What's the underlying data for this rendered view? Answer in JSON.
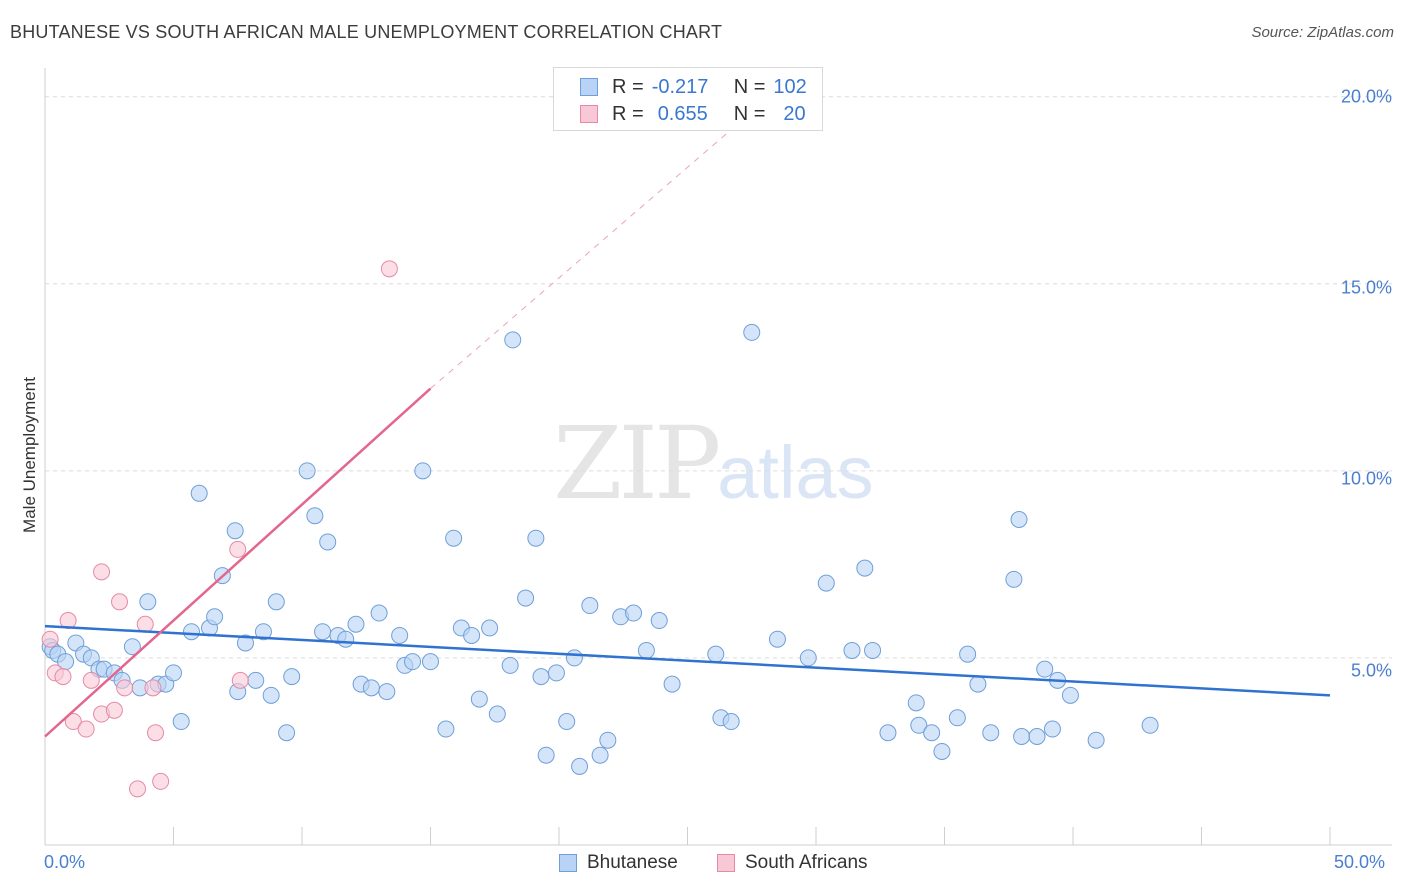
{
  "header": {
    "title": "BHUTANESE VS SOUTH AFRICAN MALE UNEMPLOYMENT CORRELATION CHART",
    "source": "Source: ZipAtlas.com"
  },
  "watermark": {
    "zip": "ZIP",
    "atlas": "atlas"
  },
  "legend_top": {
    "r_label": "R =",
    "n_label": "N =",
    "rows": [
      {
        "r": "-0.217",
        "n": "102",
        "color": "#b8d3f5",
        "border": "#6f9fd8"
      },
      {
        "r": "0.655",
        "n": "20",
        "color": "#f8c8d6",
        "border": "#e58aa6"
      }
    ]
  },
  "legend_bottom": [
    {
      "label": "Bhutanese",
      "color": "#b8d3f5",
      "border": "#6f9fd8"
    },
    {
      "label": "South Africans",
      "color": "#f8c8d6",
      "border": "#e58aa6"
    }
  ],
  "chart_data": {
    "type": "scatter",
    "title": "BHUTANESE VS SOUTH AFRICAN MALE UNEMPLOYMENT CORRELATION CHART",
    "xlabel": "",
    "ylabel": "Male Unemployment",
    "xlim": [
      0,
      50
    ],
    "ylim": [
      0,
      20
    ],
    "x_tick_labels": [
      "0.0%",
      "50.0%"
    ],
    "y_ticks": [
      5,
      10,
      15,
      20
    ],
    "y_tick_labels": [
      "5.0%",
      "10.0%",
      "15.0%",
      "20.0%"
    ],
    "grid": true,
    "series": [
      {
        "name": "Bhutanese",
        "color": "#6f9fd8",
        "fill": "#b8d3f5",
        "trend": {
          "x0": 0,
          "y0": 5.85,
          "x1": 50,
          "y1": 4.0
        },
        "points": [
          [
            0.2,
            5.3
          ],
          [
            0.3,
            5.2
          ],
          [
            0.5,
            5.1
          ],
          [
            0.8,
            4.9
          ],
          [
            1.2,
            5.4
          ],
          [
            1.5,
            5.1
          ],
          [
            1.8,
            5.0
          ],
          [
            2.1,
            4.7
          ],
          [
            2.3,
            4.7
          ],
          [
            2.7,
            4.6
          ],
          [
            3.0,
            4.4
          ],
          [
            3.4,
            5.3
          ],
          [
            3.7,
            4.2
          ],
          [
            4.0,
            6.5
          ],
          [
            4.4,
            4.3
          ],
          [
            4.7,
            4.3
          ],
          [
            5.0,
            4.6
          ],
          [
            5.3,
            3.3
          ],
          [
            5.7,
            5.7
          ],
          [
            6.0,
            9.4
          ],
          [
            6.4,
            5.8
          ],
          [
            6.6,
            6.1
          ],
          [
            6.9,
            7.2
          ],
          [
            7.4,
            8.4
          ],
          [
            7.5,
            4.1
          ],
          [
            7.8,
            5.4
          ],
          [
            8.2,
            4.4
          ],
          [
            8.5,
            5.7
          ],
          [
            8.8,
            4.0
          ],
          [
            9.0,
            6.5
          ],
          [
            9.4,
            3.0
          ],
          [
            9.6,
            4.5
          ],
          [
            10.2,
            10.0
          ],
          [
            10.5,
            8.8
          ],
          [
            10.8,
            5.7
          ],
          [
            11.0,
            8.1
          ],
          [
            11.4,
            5.6
          ],
          [
            11.7,
            5.5
          ],
          [
            12.1,
            5.9
          ],
          [
            12.3,
            4.3
          ],
          [
            12.7,
            4.2
          ],
          [
            13.0,
            6.2
          ],
          [
            13.3,
            4.1
          ],
          [
            13.8,
            5.6
          ],
          [
            14.0,
            4.8
          ],
          [
            14.3,
            4.9
          ],
          [
            14.7,
            10.0
          ],
          [
            15.0,
            4.9
          ],
          [
            15.6,
            3.1
          ],
          [
            15.9,
            8.2
          ],
          [
            16.2,
            5.8
          ],
          [
            16.6,
            5.6
          ],
          [
            16.9,
            3.9
          ],
          [
            17.3,
            5.8
          ],
          [
            17.6,
            3.5
          ],
          [
            18.1,
            4.8
          ],
          [
            18.2,
            13.5
          ],
          [
            18.7,
            6.6
          ],
          [
            19.1,
            8.2
          ],
          [
            19.3,
            4.5
          ],
          [
            19.5,
            2.4
          ],
          [
            19.9,
            4.6
          ],
          [
            20.3,
            3.3
          ],
          [
            20.6,
            5.0
          ],
          [
            20.8,
            2.1
          ],
          [
            21.2,
            6.4
          ],
          [
            21.6,
            2.4
          ],
          [
            21.9,
            2.8
          ],
          [
            22.4,
            6.1
          ],
          [
            22.9,
            6.2
          ],
          [
            23.4,
            5.2
          ],
          [
            23.9,
            6.0
          ],
          [
            24.4,
            4.3
          ],
          [
            26.1,
            5.1
          ],
          [
            26.3,
            3.4
          ],
          [
            26.7,
            3.3
          ],
          [
            27.5,
            13.7
          ],
          [
            28.5,
            5.5
          ],
          [
            29.7,
            5.0
          ],
          [
            30.4,
            7.0
          ],
          [
            31.4,
            5.2
          ],
          [
            31.9,
            7.4
          ],
          [
            32.2,
            5.2
          ],
          [
            32.8,
            3.0
          ],
          [
            33.9,
            3.8
          ],
          [
            34.0,
            3.2
          ],
          [
            34.5,
            3.0
          ],
          [
            34.9,
            2.5
          ],
          [
            35.5,
            3.4
          ],
          [
            35.9,
            5.1
          ],
          [
            36.3,
            4.3
          ],
          [
            36.8,
            3.0
          ],
          [
            37.7,
            7.1
          ],
          [
            37.9,
            8.7
          ],
          [
            38.0,
            2.9
          ],
          [
            38.6,
            2.9
          ],
          [
            38.9,
            4.7
          ],
          [
            39.2,
            3.1
          ],
          [
            39.4,
            4.4
          ],
          [
            39.9,
            4.0
          ],
          [
            40.9,
            2.8
          ],
          [
            43.0,
            3.2
          ]
        ]
      },
      {
        "name": "South Africans",
        "color": "#e58aa6",
        "fill": "#f8c8d6",
        "trend": {
          "x0": 0,
          "y0": 2.9,
          "x1": 15,
          "y1": 12.2
        },
        "trend_dashed": {
          "x0": 15,
          "y0": 12.2,
          "x1": 26.5,
          "y1": 19.0
        },
        "points": [
          [
            0.2,
            5.5
          ],
          [
            0.4,
            4.6
          ],
          [
            0.7,
            4.5
          ],
          [
            0.9,
            6.0
          ],
          [
            1.1,
            3.3
          ],
          [
            1.6,
            3.1
          ],
          [
            1.8,
            4.4
          ],
          [
            2.2,
            3.5
          ],
          [
            2.2,
            7.3
          ],
          [
            2.7,
            3.6
          ],
          [
            2.9,
            6.5
          ],
          [
            3.1,
            4.2
          ],
          [
            3.6,
            1.5
          ],
          [
            3.9,
            5.9
          ],
          [
            4.2,
            4.2
          ],
          [
            4.3,
            3.0
          ],
          [
            4.5,
            1.7
          ],
          [
            7.5,
            7.9
          ],
          [
            7.6,
            4.4
          ],
          [
            13.4,
            15.4
          ]
        ]
      }
    ]
  }
}
